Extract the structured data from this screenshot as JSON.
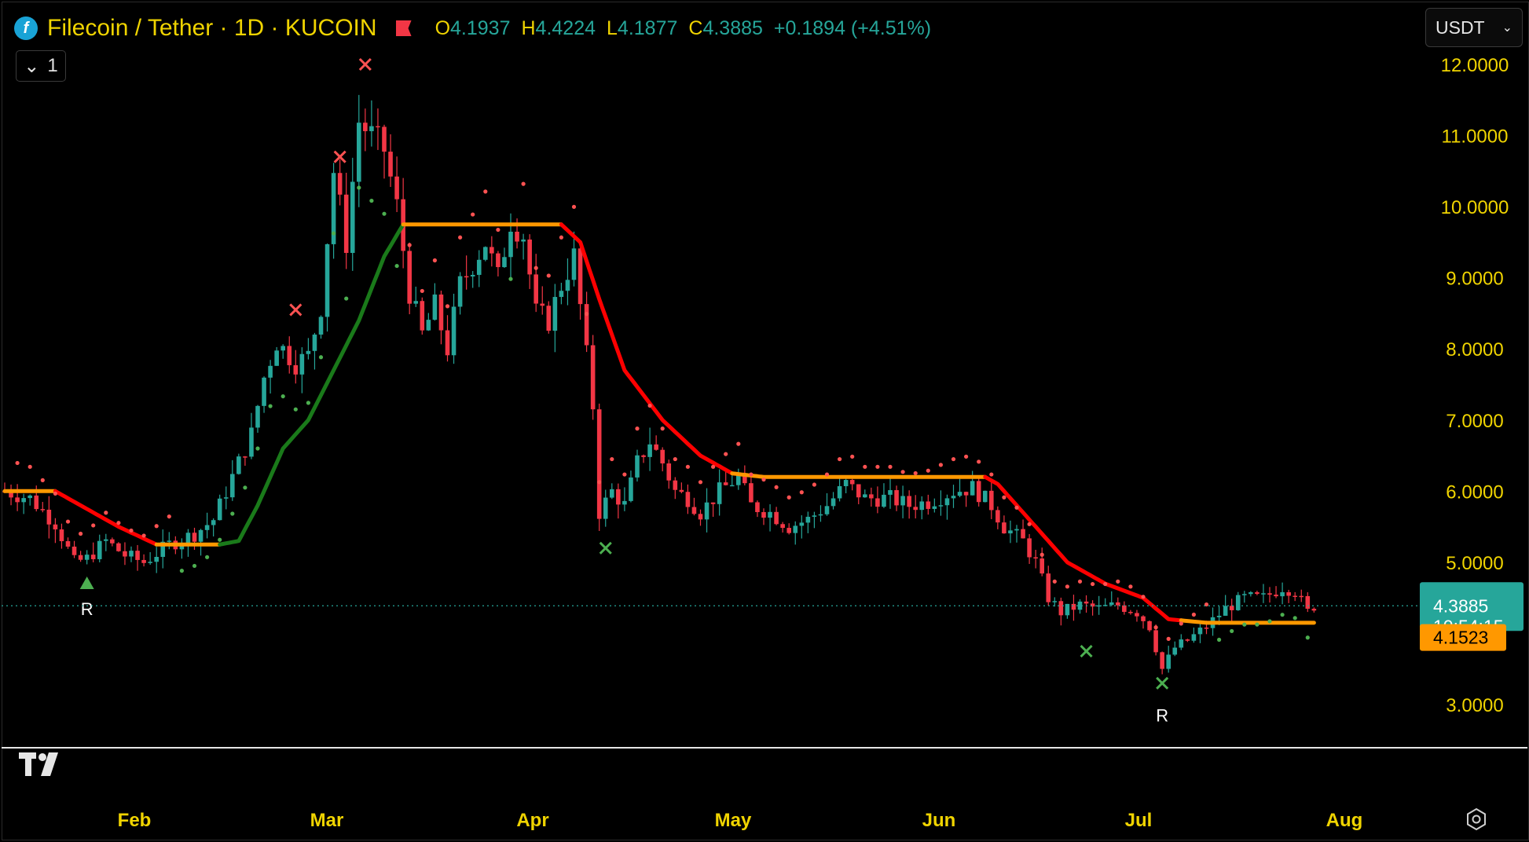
{
  "header": {
    "symbol": "Filecoin / Tether · 1D · KUCOIN",
    "logo_glyph": "f",
    "ohlc": {
      "o_label": "O",
      "o_value": "4.1937",
      "h_label": "H",
      "h_value": "4.4224",
      "l_label": "L",
      "l_value": "4.1877",
      "c_label": "C",
      "c_value": "4.3885",
      "change": "+0.1894 (+4.51%)"
    }
  },
  "controls": {
    "collapse_count": "1",
    "currency": "USDT"
  },
  "colors": {
    "up": "#26a69a",
    "down": "#f23645",
    "axis_text": "#f0d400",
    "trail_up": "#1a7a1a",
    "trail_down": "#ff0000",
    "trail_flat": "#ff9800",
    "marker_up": "#4caf50",
    "marker_down": "#ff5252"
  },
  "chart_data": {
    "type": "candlestick",
    "y_axis": {
      "ticks": [
        "12.0000",
        "11.0000",
        "10.0000",
        "9.0000",
        "8.0000",
        "7.0000",
        "6.0000",
        "5.0000",
        "3.0000"
      ],
      "range": [
        2.6,
        12.3
      ]
    },
    "x_axis": {
      "ticks": [
        "Feb",
        "Mar",
        "Apr",
        "May",
        "Jun",
        "Jul",
        "Aug"
      ]
    },
    "last_price": "4.3885",
    "countdown": "10:54:15",
    "trail_level": "4.1523",
    "overlay_trail": [
      {
        "d": 0,
        "v": 6.0
      },
      {
        "d": 8,
        "v": 6.0
      },
      {
        "d": 12,
        "v": 5.8
      },
      {
        "d": 18,
        "v": 5.5
      },
      {
        "d": 24,
        "v": 5.25
      },
      {
        "d": 34,
        "v": 5.25
      },
      {
        "d": 37,
        "v": 5.3
      },
      {
        "d": 40,
        "v": 5.8
      },
      {
        "d": 44,
        "v": 6.6
      },
      {
        "d": 48,
        "v": 7.0
      },
      {
        "d": 52,
        "v": 7.7
      },
      {
        "d": 56,
        "v": 8.4
      },
      {
        "d": 60,
        "v": 9.3
      },
      {
        "d": 63,
        "v": 9.75
      },
      {
        "d": 88,
        "v": 9.75
      },
      {
        "d": 91,
        "v": 9.5
      },
      {
        "d": 94,
        "v": 8.7
      },
      {
        "d": 98,
        "v": 7.7
      },
      {
        "d": 104,
        "v": 7.0
      },
      {
        "d": 110,
        "v": 6.5
      },
      {
        "d": 115,
        "v": 6.25
      },
      {
        "d": 120,
        "v": 6.2
      },
      {
        "d": 155,
        "v": 6.2
      },
      {
        "d": 157,
        "v": 6.1
      },
      {
        "d": 162,
        "v": 5.6
      },
      {
        "d": 168,
        "v": 5.0
      },
      {
        "d": 174,
        "v": 4.7
      },
      {
        "d": 180,
        "v": 4.5
      },
      {
        "d": 184,
        "v": 4.2
      },
      {
        "d": 190,
        "v": 4.15
      },
      {
        "d": 207,
        "v": 4.15
      }
    ],
    "trail_segments": [
      {
        "from": 0,
        "to": 8,
        "state": "flat"
      },
      {
        "from": 8,
        "to": 24,
        "state": "down"
      },
      {
        "from": 24,
        "to": 34,
        "state": "flat"
      },
      {
        "from": 34,
        "to": 63,
        "state": "up"
      },
      {
        "from": 63,
        "to": 88,
        "state": "flat"
      },
      {
        "from": 88,
        "to": 115,
        "state": "down"
      },
      {
        "from": 115,
        "to": 155,
        "state": "flat"
      },
      {
        "from": 155,
        "to": 186,
        "state": "down"
      },
      {
        "from": 186,
        "to": 207,
        "state": "flat"
      }
    ],
    "markers": [
      {
        "type": "cross",
        "d": 57,
        "v": 12.0,
        "dir": "down"
      },
      {
        "type": "cross",
        "d": 53,
        "v": 10.7,
        "dir": "down"
      },
      {
        "type": "cross",
        "d": 46,
        "v": 8.55,
        "dir": "down"
      },
      {
        "type": "cross",
        "d": 95,
        "v": 5.2,
        "dir": "up"
      },
      {
        "type": "cross",
        "d": 171,
        "v": 3.75,
        "dir": "up"
      },
      {
        "type": "cross",
        "d": 183,
        "v": 3.3,
        "dir": "up"
      },
      {
        "type": "triangle",
        "d": 13,
        "v": 4.7,
        "dir": "up"
      }
    ],
    "labels": [
      {
        "text": "R",
        "d": 13,
        "v": 4.35
      },
      {
        "text": "R",
        "d": 183,
        "v": 2.85
      }
    ],
    "price_path": [
      [
        0,
        6.0
      ],
      [
        4,
        5.9
      ],
      [
        8,
        5.55
      ],
      [
        11,
        5.0
      ],
      [
        13,
        5.05
      ],
      [
        16,
        5.3
      ],
      [
        19,
        5.1
      ],
      [
        22,
        5.0
      ],
      [
        26,
        5.25
      ],
      [
        30,
        5.4
      ],
      [
        33,
        5.6
      ],
      [
        36,
        6.2
      ],
      [
        39,
        6.8
      ],
      [
        41,
        7.6
      ],
      [
        43,
        8.1
      ],
      [
        46,
        7.8
      ],
      [
        48,
        7.9
      ],
      [
        50,
        8.6
      ],
      [
        52,
        10.5
      ],
      [
        54,
        9.5
      ],
      [
        56,
        11.2
      ],
      [
        58,
        11.0
      ],
      [
        60,
        10.8
      ],
      [
        62,
        10.0
      ],
      [
        64,
        8.8
      ],
      [
        66,
        8.2
      ],
      [
        68,
        8.6
      ],
      [
        70,
        8.0
      ],
      [
        72,
        8.9
      ],
      [
        74,
        9.2
      ],
      [
        76,
        9.5
      ],
      [
        78,
        9.0
      ],
      [
        80,
        9.8
      ],
      [
        82,
        9.6
      ],
      [
        84,
        8.5
      ],
      [
        86,
        8.4
      ],
      [
        88,
        8.9
      ],
      [
        90,
        9.3
      ],
      [
        91,
        8.6
      ],
      [
        93,
        7.2
      ],
      [
        94,
        5.7
      ],
      [
        96,
        6.0
      ],
      [
        98,
        5.8
      ],
      [
        100,
        6.4
      ],
      [
        102,
        6.7
      ],
      [
        104,
        6.4
      ],
      [
        106,
        6.0
      ],
      [
        108,
        5.9
      ],
      [
        110,
        5.7
      ],
      [
        113,
        6.0
      ],
      [
        116,
        6.2
      ],
      [
        118,
        5.8
      ],
      [
        121,
        5.7
      ],
      [
        124,
        5.5
      ],
      [
        127,
        5.6
      ],
      [
        130,
        5.8
      ],
      [
        133,
        6.1
      ],
      [
        136,
        5.9
      ],
      [
        140,
        5.9
      ],
      [
        143,
        5.8
      ],
      [
        146,
        5.85
      ],
      [
        150,
        6.0
      ],
      [
        153,
        6.05
      ],
      [
        156,
        5.8
      ],
      [
        158,
        5.5
      ],
      [
        161,
        5.3
      ],
      [
        163,
        5.0
      ],
      [
        165,
        4.5
      ],
      [
        167,
        4.3
      ],
      [
        170,
        4.4
      ],
      [
        173,
        4.35
      ],
      [
        176,
        4.4
      ],
      [
        179,
        4.3
      ],
      [
        181,
        4.1
      ],
      [
        183,
        3.5
      ],
      [
        185,
        3.8
      ],
      [
        187,
        3.9
      ],
      [
        190,
        4.1
      ],
      [
        193,
        4.35
      ],
      [
        196,
        4.5
      ],
      [
        199,
        4.5
      ],
      [
        202,
        4.65
      ],
      [
        204,
        4.6
      ],
      [
        206,
        4.3
      ],
      [
        207,
        4.39
      ]
    ]
  }
}
